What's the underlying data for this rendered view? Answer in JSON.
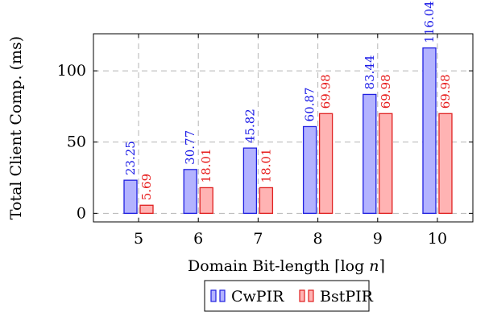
{
  "chart_data": {
    "type": "bar",
    "title": "",
    "xlabel": "Domain Bit-length ⌈log n⌉",
    "xlabel_parts": {
      "prefix": "Domain Bit-length ",
      "open": "⌈",
      "func": "log ",
      "var": "n",
      "close": "⌉"
    },
    "ylabel": "Total Client Comp. (ms)",
    "categories": [
      "5",
      "6",
      "7",
      "8",
      "9",
      "10"
    ],
    "ylim": [
      -6,
      126
    ],
    "yticks": [
      0,
      50,
      100
    ],
    "grid": true,
    "legend_position": "bottom-center",
    "series": [
      {
        "name": "CwPIR",
        "values": [
          23.25,
          30.77,
          45.82,
          60.87,
          83.44,
          116.04
        ],
        "labels": [
          "23.25",
          "30.77",
          "45.82",
          "60.87",
          "83.44",
          "116.04"
        ],
        "fill": "#b3b3ff",
        "stroke": "#2020e0",
        "text_color": "#1a1ae6"
      },
      {
        "name": "BstPIR",
        "values": [
          5.69,
          18.01,
          18.01,
          69.98,
          69.98,
          69.98
        ],
        "labels": [
          "5.69",
          "18.01",
          "18.01",
          "69.98",
          "69.98",
          "69.98"
        ],
        "fill": "#ffb3b3",
        "stroke": "#e02020",
        "text_color": "#e61a1a"
      }
    ]
  }
}
